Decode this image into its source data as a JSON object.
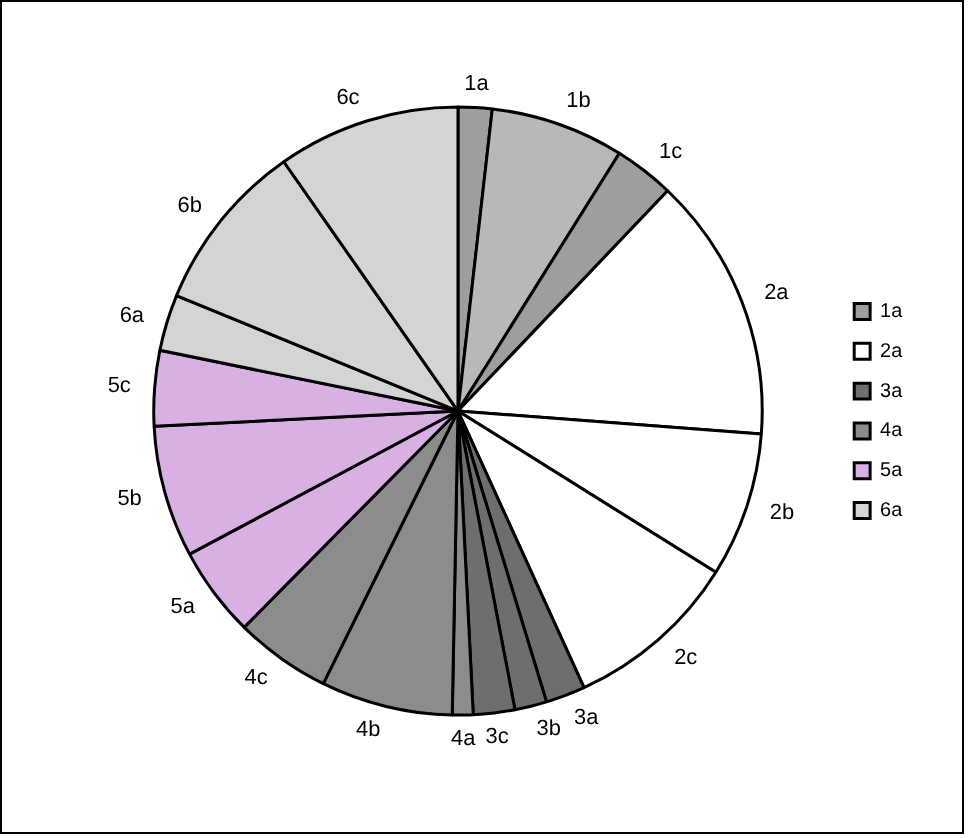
{
  "chart_data": {
    "type": "pie",
    "categories": [
      "1a",
      "1b",
      "1c",
      "2a",
      "2b",
      "2c",
      "3a",
      "3b",
      "3c",
      "4a",
      "4b",
      "4c",
      "5a",
      "5b",
      "5c",
      "6a",
      "6b",
      "6c"
    ],
    "values": [
      1.8,
      7.1,
      3.2,
      14.1,
      7.7,
      9.3,
      2.1,
      1.7,
      2.2,
      1.1,
      7.0,
      5.1,
      4.8,
      7.0,
      4.0,
      3.0,
      9.1,
      9.7
    ],
    "colors": [
      "#9e9e9e",
      "#b8b8b8",
      "#9e9e9e",
      "#ffffff",
      "#ffffff",
      "#ffffff",
      "#6e6e6e",
      "#6e6e6e",
      "#6e6e6e",
      "#8c8c8c",
      "#8c8c8c",
      "#8c8c8c",
      "#d9b0e3",
      "#d9b0e3",
      "#d9b0e3",
      "#d4d4d4",
      "#d4d4d4",
      "#d4d4d4"
    ],
    "legend": "right"
  }
}
